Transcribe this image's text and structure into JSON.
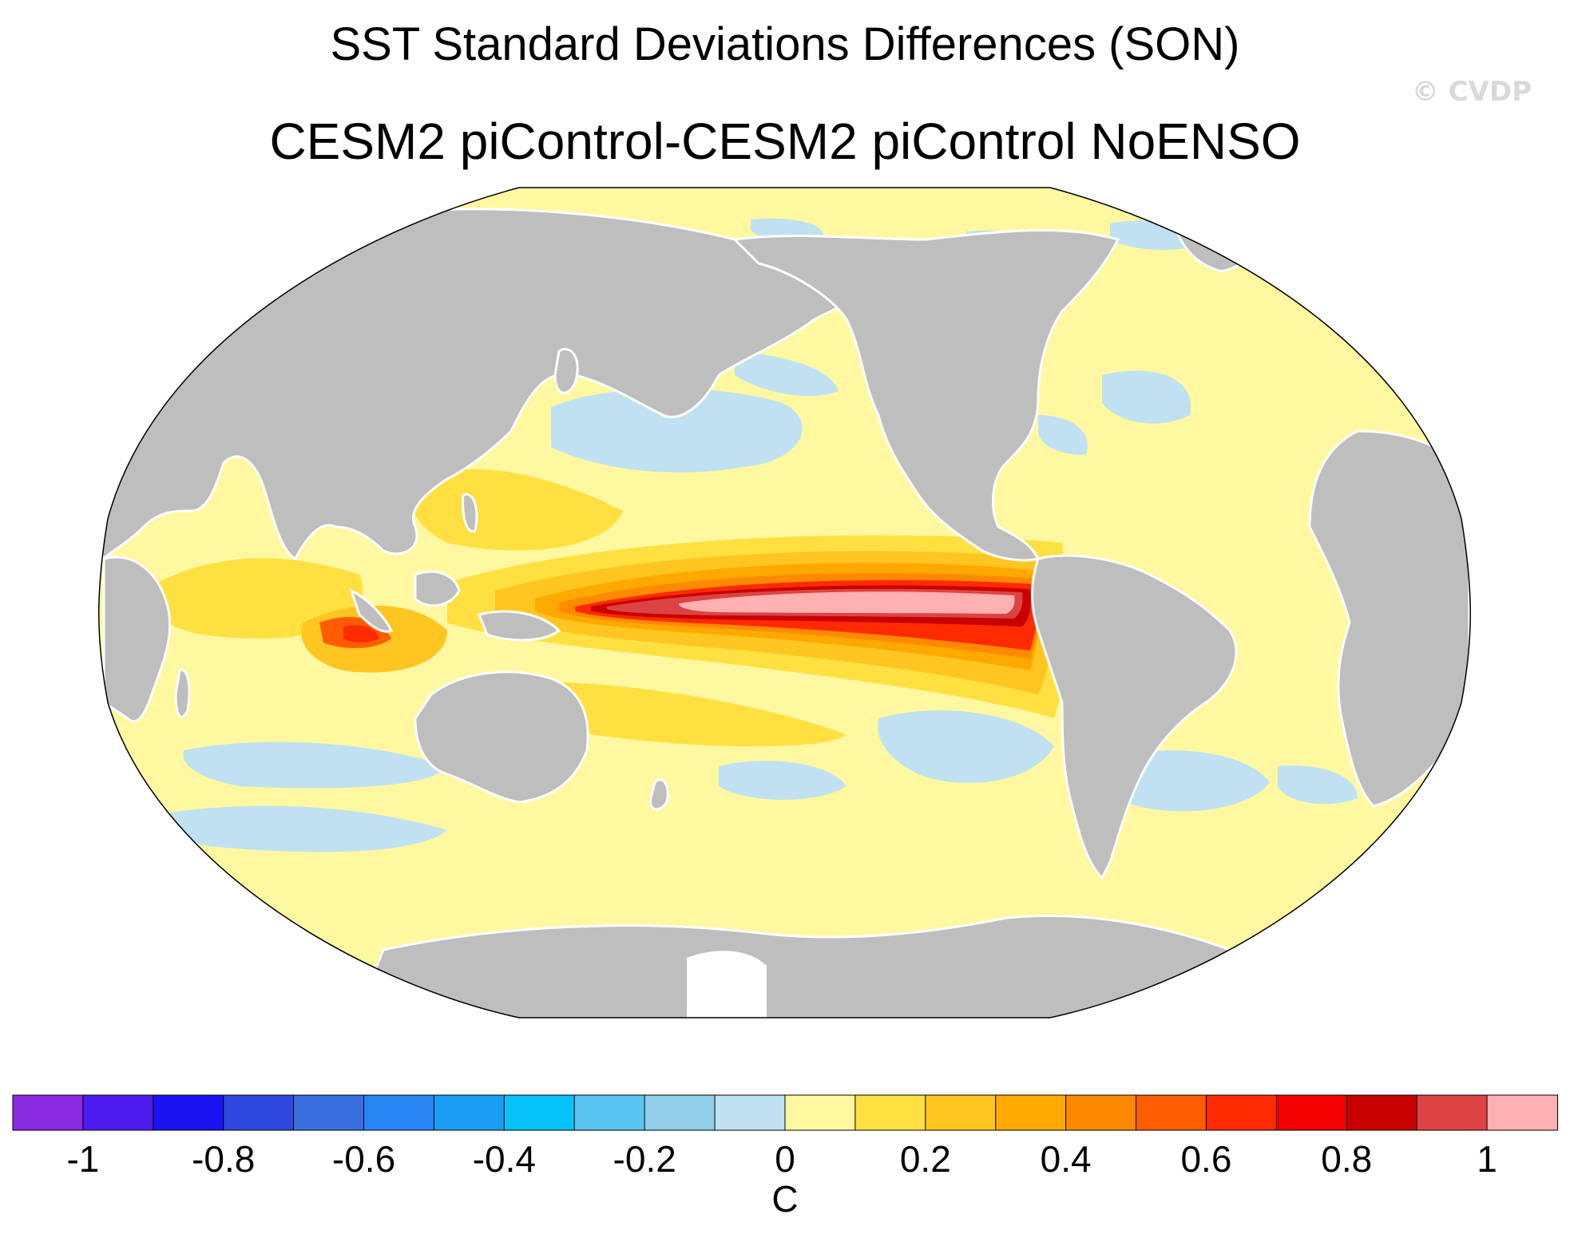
{
  "title": "SST Standard Deviations Differences (SON)",
  "subtitle": "CESM2 piControl-CESM2 piControl NoENSO",
  "watermark": "© CVDP",
  "colorbar": {
    "unit": "C",
    "tick_labels": [
      "-1",
      "-0.8",
      "-0.6",
      "-0.4",
      "-0.2",
      "0",
      "0.2",
      "0.4",
      "0.6",
      "0.8",
      "1"
    ],
    "colors": [
      "#8a2be2",
      "#4c1cf0",
      "#1a12f0",
      "#2f48e0",
      "#3a6fe0",
      "#2a86f5",
      "#1a9ef5",
      "#05c2fa",
      "#5ac4f0",
      "#8fcde8",
      "#bfe1f2",
      "#fff8a0",
      "#ffe040",
      "#ffc520",
      "#ffa800",
      "#ff8a00",
      "#ff5c00",
      "#ff2a00",
      "#f20000",
      "#c80000",
      "#dc4444",
      "#ffb0b0"
    ]
  },
  "map": {
    "projection": "Robinson",
    "land_color": "#bebebe",
    "ocean_base_color": "#fff8a0",
    "negative_color": "#bfe1f2"
  }
}
